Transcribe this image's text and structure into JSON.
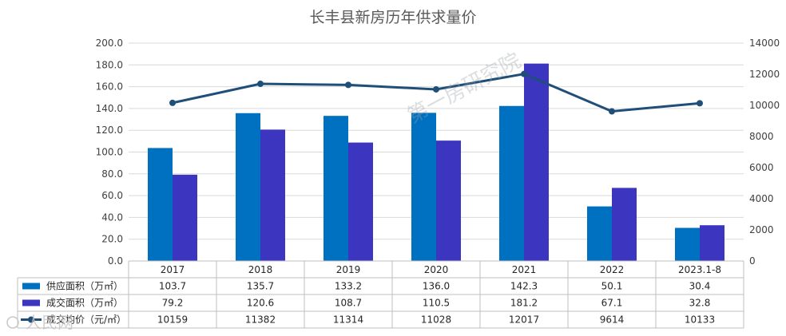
{
  "chart_data": {
    "type": "bar",
    "title": "长丰县新房历年供求量价",
    "categories": [
      "2017",
      "2018",
      "2019",
      "2020",
      "2021",
      "2022",
      "2023.1-8"
    ],
    "series": [
      {
        "name": "供应面积（万㎡）",
        "kind": "bar",
        "axis": "left",
        "color": "#0070c0",
        "values": [
          103.7,
          135.7,
          133.2,
          136.0,
          142.3,
          50.1,
          30.4
        ],
        "labels": [
          "103.7",
          "135.7",
          "133.2",
          "136.0",
          "142.3",
          "50.1",
          "30.4"
        ]
      },
      {
        "name": "成交面积（万㎡）",
        "kind": "bar",
        "axis": "left",
        "color": "#3b35c0",
        "values": [
          79.2,
          120.6,
          108.7,
          110.5,
          181.2,
          67.1,
          32.8
        ],
        "labels": [
          "79.2",
          "120.6",
          "108.7",
          "110.5",
          "181.2",
          "67.1",
          "32.8"
        ]
      },
      {
        "name": "成交均价（元/㎡）",
        "kind": "line",
        "axis": "right",
        "color": "#1f4e79",
        "values": [
          10159,
          11382,
          11314,
          11028,
          12017,
          9614,
          10133
        ],
        "labels": [
          "10159",
          "11382",
          "11314",
          "11028",
          "12017",
          "9614",
          "10133"
        ]
      }
    ],
    "y_left": {
      "min": 0,
      "max": 200,
      "step": 20,
      "ticks": [
        "0.0",
        "20.0",
        "40.0",
        "60.0",
        "80.0",
        "100.0",
        "120.0",
        "140.0",
        "160.0",
        "180.0",
        "200.0"
      ]
    },
    "y_right": {
      "min": 0,
      "max": 14000,
      "step": 2000,
      "ticks": [
        "0",
        "2000",
        "4000",
        "6000",
        "8000",
        "10000",
        "12000",
        "14000"
      ]
    },
    "grid": true,
    "legend": "data-table"
  },
  "watermark": "第一房研究院",
  "source_mark": "人民网"
}
